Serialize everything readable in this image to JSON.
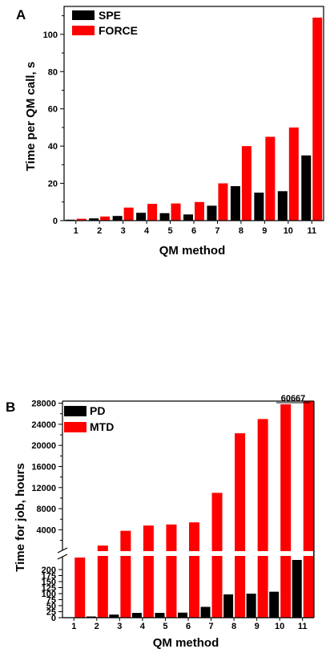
{
  "chart_data": [
    {
      "panel": "A",
      "type": "bar",
      "categories": [
        "1",
        "2",
        "3",
        "4",
        "5",
        "6",
        "7",
        "8",
        "9",
        "10",
        "11"
      ],
      "series": [
        {
          "name": "SPE",
          "color": "#000000",
          "values": [
            0.5,
            1.2,
            2.5,
            4.2,
            4.0,
            3.3,
            8.0,
            18.5,
            15.0,
            15.8,
            35.0
          ]
        },
        {
          "name": "FORCE",
          "color": "#ff0000",
          "values": [
            1.0,
            2.2,
            7.0,
            9.0,
            9.2,
            10.0,
            20.0,
            40.0,
            45.0,
            50.0,
            109.0
          ]
        }
      ],
      "xlabel": "QM method",
      "ylabel": "Time per QM call, s",
      "ylim": [
        0,
        115
      ],
      "yticks": [
        "0",
        "20",
        "40",
        "60",
        "80",
        "100"
      ],
      "legend": "top-left"
    },
    {
      "panel": "B",
      "type": "bar",
      "categories": [
        "1",
        "2",
        "3",
        "4",
        "5",
        "6",
        "7",
        "8",
        "9",
        "10",
        "11"
      ],
      "series": [
        {
          "name": "PD",
          "color": "#000000",
          "values": [
            2,
            5,
            13,
            20,
            20,
            21,
            45,
            97,
            100,
            108,
            240
          ]
        },
        {
          "name": "MTD",
          "color": "#ff0000",
          "values": [
            250,
            1000,
            3800,
            4800,
            5000,
            5400,
            11000,
            22300,
            25000,
            27800,
            60667
          ]
        }
      ],
      "xlabel": "QM method",
      "ylabel": "Time for job, hours",
      "broken_axis": {
        "lower_range": [
          0,
          250
        ],
        "upper_range": [
          250,
          28400
        ]
      },
      "yticks_lower": [
        "0",
        "25",
        "50",
        "75",
        "100",
        "125",
        "150",
        "175",
        "200"
      ],
      "yticks_upper": [
        "4000",
        "8000",
        "12000",
        "16000",
        "20000",
        "24000",
        "28000"
      ],
      "annotation": "60667",
      "legend": "top-left"
    }
  ]
}
